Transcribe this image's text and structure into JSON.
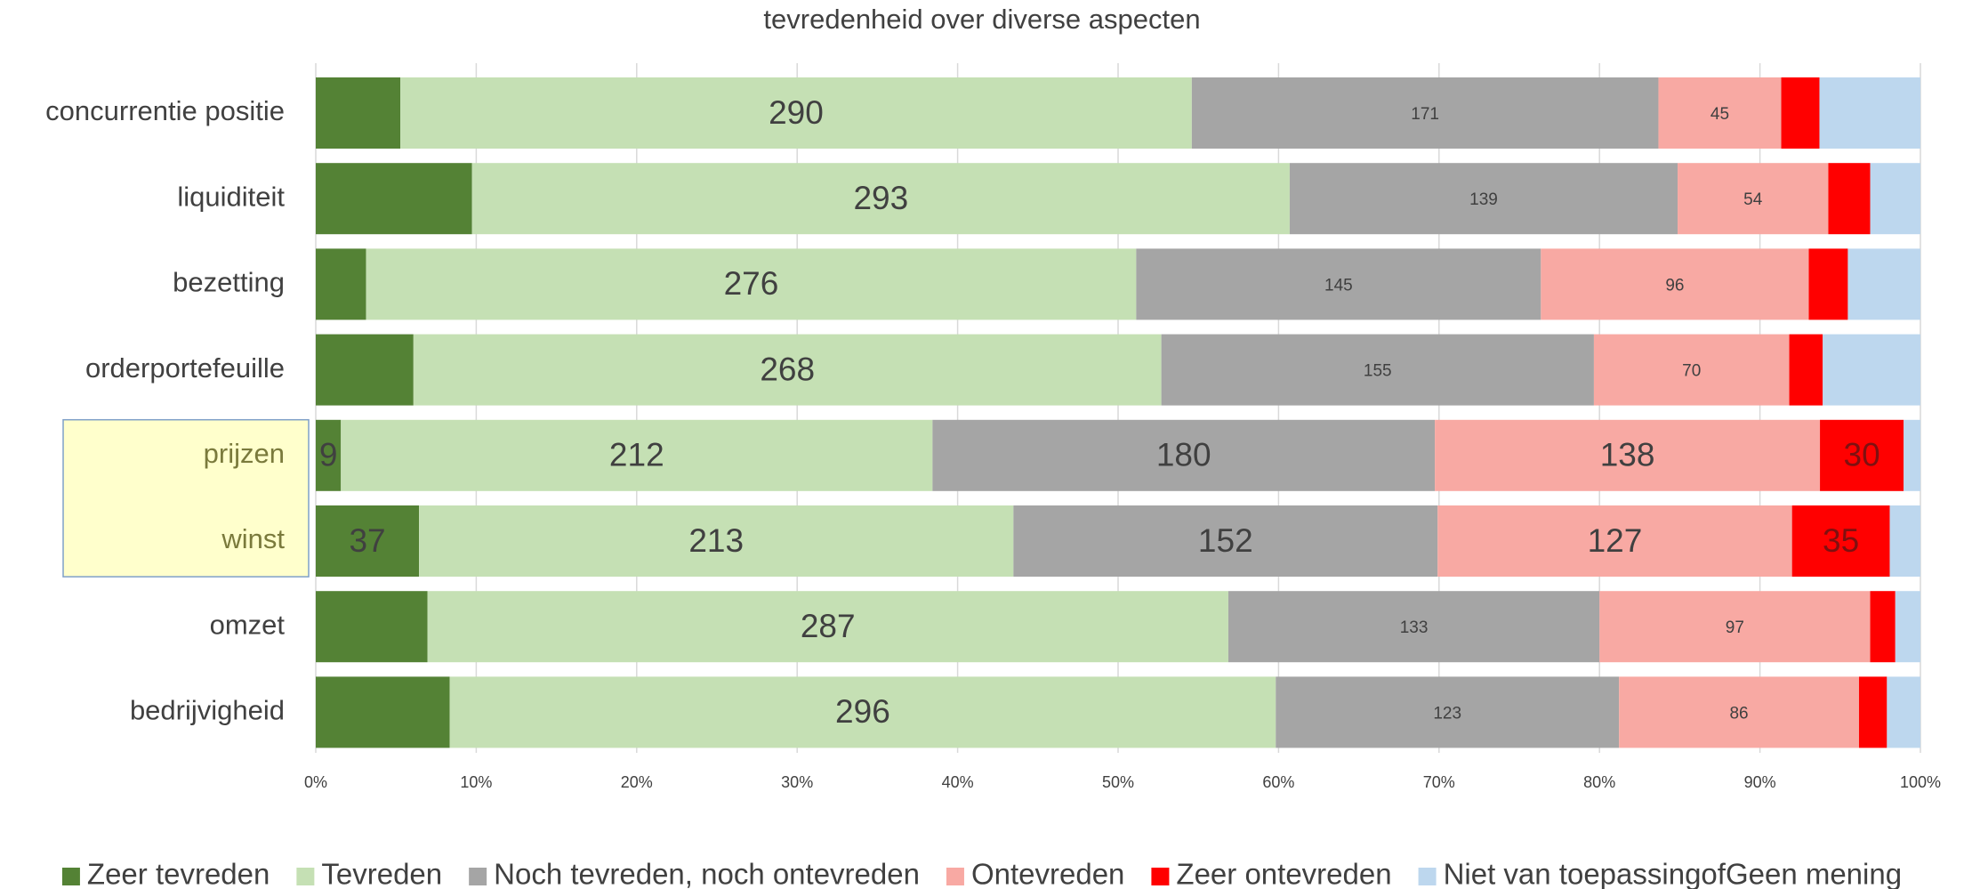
{
  "chart_data": {
    "type": "bar",
    "orientation": "horizontal",
    "stacked": "percent",
    "title": "tevredenheid over diverse aspecten",
    "categories": [
      "concurrentie positie",
      "liquiditeit",
      "bezetting",
      "orderportefeuille",
      "prijzen",
      "winst",
      "omzet",
      "bedrijvigheid"
    ],
    "highlight": [
      4,
      5
    ],
    "series": [
      {
        "name": "Zeer tevreden",
        "color": "#548235",
        "values": [
          31,
          56,
          18,
          35,
          9,
          37,
          40,
          48
        ],
        "value_labels": [
          null,
          null,
          null,
          null,
          "9",
          "37",
          null,
          null
        ]
      },
      {
        "name": "Tevreden",
        "color": "#c5e0b4",
        "values": [
          290,
          293,
          276,
          268,
          212,
          213,
          287,
          296
        ],
        "value_labels": [
          "290",
          "293",
          "276",
          "268",
          "212",
          "213",
          "287",
          "296"
        ]
      },
      {
        "name": "Noch tevreden, noch ontevreden",
        "color": "#a5a5a5",
        "values": [
          171,
          139,
          145,
          155,
          180,
          152,
          133,
          123
        ],
        "value_labels": [
          "171",
          "139",
          "145",
          "155",
          "180",
          "152",
          "133",
          "123"
        ]
      },
      {
        "name": "Ontevreden",
        "color": "#f8a9a3",
        "values": [
          45,
          54,
          96,
          70,
          138,
          127,
          97,
          86
        ],
        "value_labels": [
          "45",
          "54",
          "96",
          "70",
          "138",
          "127",
          "97",
          "86"
        ]
      },
      {
        "name": "Zeer ontevreden",
        "color": "#ff0000",
        "values": [
          14,
          15,
          14,
          12,
          30,
          35,
          9,
          10
        ],
        "value_labels": [
          null,
          null,
          null,
          null,
          "30",
          "35",
          null,
          null
        ]
      },
      {
        "name": "Niet van toepassingofGeen mening",
        "color": "#bdd7ee",
        "values": [
          37,
          18,
          26,
          35,
          6,
          11,
          9,
          12
        ],
        "value_labels": [
          null,
          null,
          null,
          null,
          null,
          null,
          null,
          null
        ]
      }
    ],
    "xlim": [
      0,
      100
    ],
    "xticks": [
      {
        "value": 0,
        "label": "0%"
      },
      {
        "value": 10,
        "label": "10%"
      },
      {
        "value": 20,
        "label": "20%"
      },
      {
        "value": 30,
        "label": "30%"
      },
      {
        "value": 40,
        "label": "40%"
      },
      {
        "value": 50,
        "label": "50%"
      },
      {
        "value": 60,
        "label": "60%"
      },
      {
        "value": 70,
        "label": "70%"
      },
      {
        "value": 80,
        "label": "80%"
      },
      {
        "value": 90,
        "label": "90%"
      },
      {
        "value": 100,
        "label": "100%"
      }
    ],
    "grid": true,
    "legend": "bottom"
  }
}
